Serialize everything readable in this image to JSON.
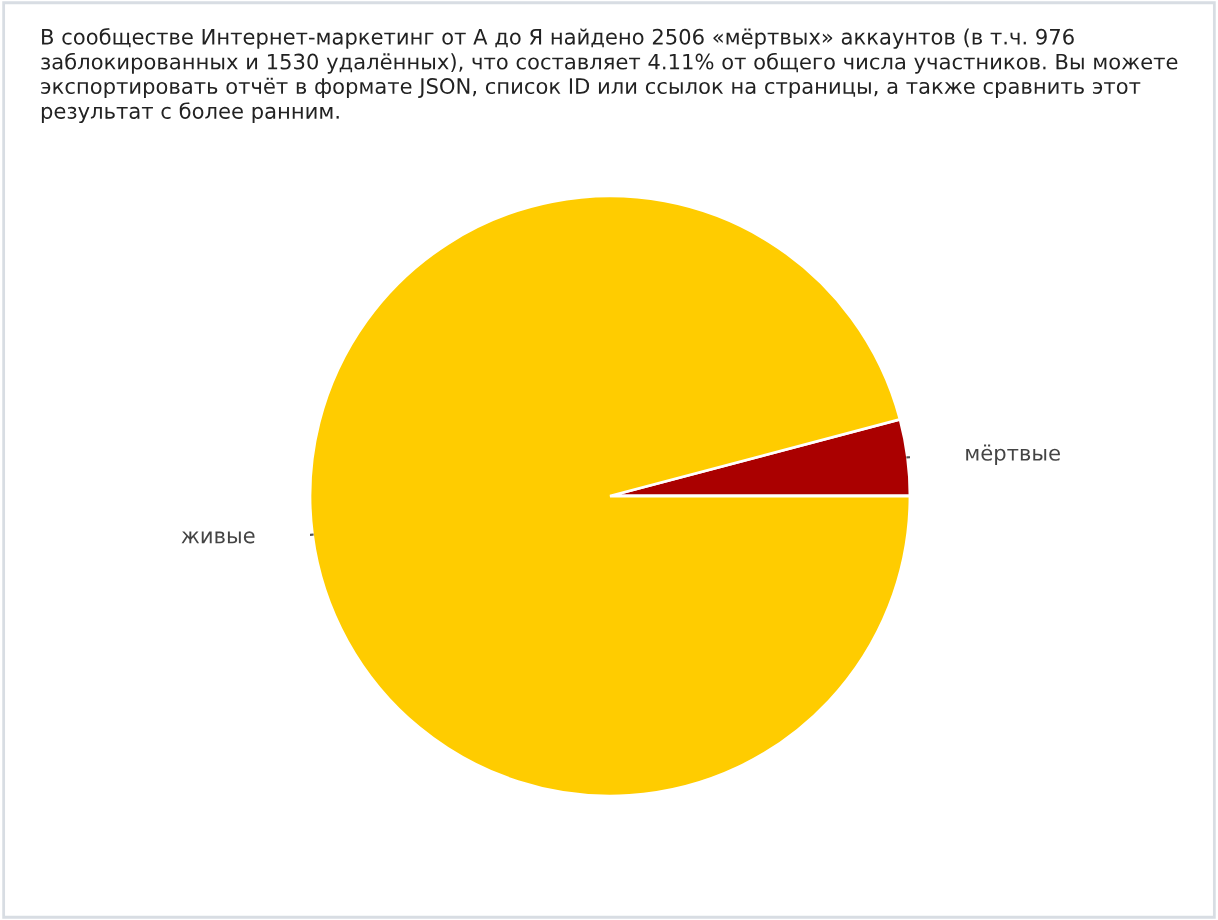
{
  "chart_data": {
    "type": "pie",
    "title": "В сообществе Интернет-маркетинг от А до Я найдено 2506 «мёртвых» аккаунтов (в т.ч. 976 заблокированных и 1530 удалённых), что составляет 4.11% от общего числа участников. Вы можете экспортировать отчёт в формате JSON, список ID или ссылок на страницы, а также сравнить этот результат с более ранним.",
    "categories": [
      "мёртвые",
      "живые"
    ],
    "values": [
      4.11,
      95.89
    ],
    "colors": [
      "#aa0000",
      "#ffcc00"
    ]
  }
}
